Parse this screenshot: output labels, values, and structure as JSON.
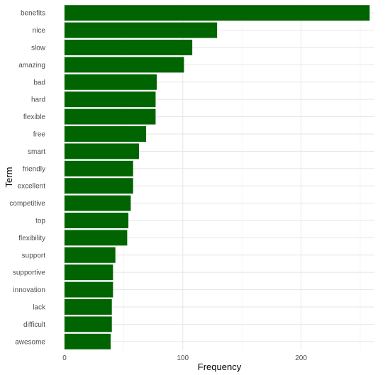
{
  "chart_data": {
    "type": "bar",
    "orientation": "horizontal",
    "categories": [
      "benefits",
      "nice",
      "slow",
      "amazing",
      "bad",
      "hard",
      "flexible",
      "free",
      "smart",
      "friendly",
      "excellent",
      "competitive",
      "top",
      "flexibility",
      "support",
      "supportive",
      "innovation",
      "lack",
      "difficult",
      "awesome"
    ],
    "values": [
      258,
      129,
      108,
      101,
      78,
      77,
      77,
      69,
      63,
      58,
      58,
      56,
      54,
      53,
      43,
      41,
      41,
      40,
      40,
      39
    ],
    "xlabel": "Frequency",
    "ylabel": "Term",
    "xlim": [
      0,
      262
    ],
    "xticks": [
      0,
      100,
      200
    ],
    "bar_color": "#006400",
    "grid": true,
    "legend": "none"
  }
}
